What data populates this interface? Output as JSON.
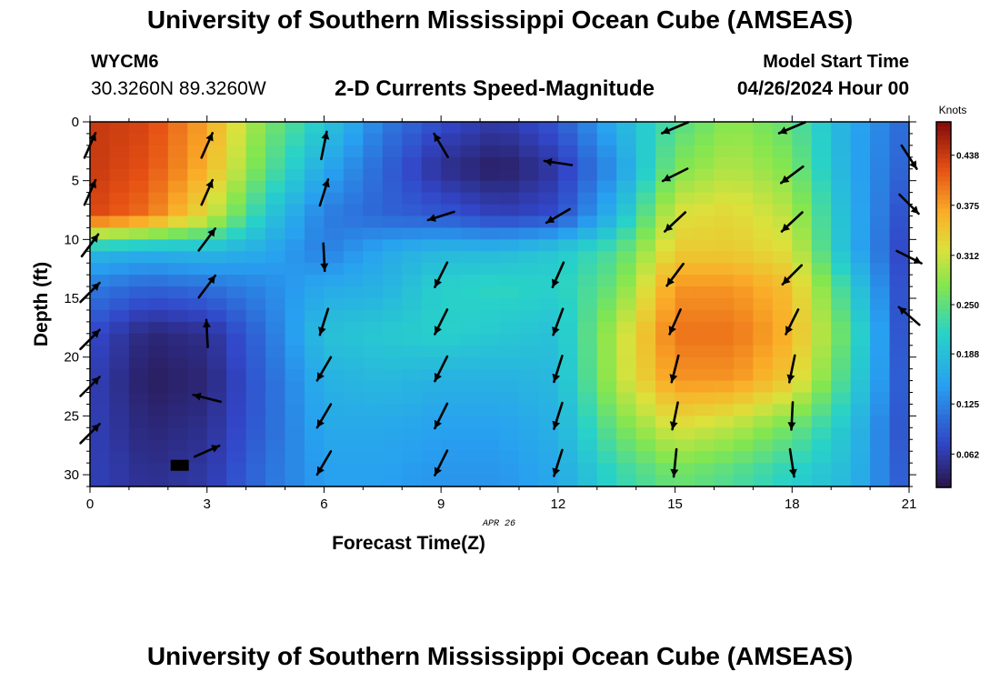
{
  "header": {
    "title": "University of Southern Mississippi Ocean Cube (AMSEAS)",
    "station": "WYCM6",
    "coords": "30.3260N  89.3260W",
    "subtitle": "2-D Currents Speed-Magnitude",
    "model_start_label": "Model Start Time",
    "model_start_value": "04/26/2024 Hour 00"
  },
  "footer": {
    "title": "University of Southern Mississippi Ocean Cube (AMSEAS)"
  },
  "chart_data": {
    "type": "heatmap",
    "xlabel": "Forecast Time(Z)",
    "ylabel": "Depth (ft)",
    "date_label": "APR 26",
    "xlim": [
      0,
      21
    ],
    "ylim": [
      0,
      31
    ],
    "x_ticks": [
      0,
      3,
      6,
      9,
      12,
      15,
      18,
      21
    ],
    "y_ticks": [
      0,
      5,
      10,
      15,
      20,
      25,
      30
    ],
    "colorbar": {
      "label": "Knots",
      "range": [
        0.02,
        0.48
      ],
      "ticks": [
        "0.062",
        "0.125",
        "0.188",
        "0.250",
        "0.312",
        "0.375",
        "0.438"
      ],
      "tick_values": [
        0.062,
        0.125,
        0.188,
        0.25,
        0.312,
        0.375,
        0.438
      ]
    },
    "speed_knots": {
      "hours": [
        0,
        1.5,
        3,
        4.5,
        6,
        7.5,
        9,
        10.5,
        12,
        13.5,
        15,
        16.5,
        18,
        19.5,
        21
      ],
      "depths_ft": [
        0,
        4,
        8,
        11,
        14,
        18,
        22,
        26,
        30
      ],
      "values": [
        [
          0.44,
          0.43,
          0.37,
          0.27,
          0.2,
          0.12,
          0.08,
          0.06,
          0.09,
          0.17,
          0.24,
          0.28,
          0.25,
          0.16,
          0.1
        ],
        [
          0.44,
          0.42,
          0.36,
          0.25,
          0.16,
          0.1,
          0.05,
          0.03,
          0.06,
          0.14,
          0.27,
          0.3,
          0.27,
          0.16,
          0.09
        ],
        [
          0.43,
          0.4,
          0.32,
          0.2,
          0.12,
          0.1,
          0.09,
          0.07,
          0.08,
          0.18,
          0.32,
          0.33,
          0.3,
          0.17,
          0.07
        ],
        [
          0.18,
          0.17,
          0.18,
          0.16,
          0.12,
          0.16,
          0.18,
          0.18,
          0.2,
          0.24,
          0.34,
          0.34,
          0.32,
          0.17,
          0.06
        ],
        [
          0.12,
          0.1,
          0.11,
          0.13,
          0.16,
          0.17,
          0.21,
          0.22,
          0.21,
          0.26,
          0.38,
          0.38,
          0.35,
          0.21,
          0.06
        ],
        [
          0.08,
          0.04,
          0.05,
          0.11,
          0.19,
          0.2,
          0.21,
          0.2,
          0.19,
          0.3,
          0.4,
          0.4,
          0.36,
          0.24,
          0.06
        ],
        [
          0.07,
          0.03,
          0.04,
          0.1,
          0.17,
          0.18,
          0.17,
          0.17,
          0.18,
          0.3,
          0.38,
          0.38,
          0.34,
          0.22,
          0.07
        ],
        [
          0.07,
          0.04,
          0.05,
          0.1,
          0.16,
          0.16,
          0.15,
          0.15,
          0.17,
          0.26,
          0.32,
          0.3,
          0.26,
          0.19,
          0.07
        ],
        [
          0.07,
          0.05,
          0.06,
          0.11,
          0.15,
          0.15,
          0.14,
          0.14,
          0.16,
          0.22,
          0.26,
          0.24,
          0.21,
          0.18,
          0.08
        ]
      ]
    },
    "current_vectors": [
      {
        "hour": 0,
        "depth": 2,
        "u": 0.4,
        "v": 0.9
      },
      {
        "hour": 0,
        "depth": 6,
        "u": 0.4,
        "v": 0.9
      },
      {
        "hour": 0,
        "depth": 10.5,
        "u": 0.6,
        "v": 0.8
      },
      {
        "hour": 0,
        "depth": 14.5,
        "u": 0.7,
        "v": 0.7
      },
      {
        "hour": 0,
        "depth": 18.5,
        "u": 0.7,
        "v": 0.7
      },
      {
        "hour": 0,
        "depth": 22.5,
        "u": 0.7,
        "v": 0.7
      },
      {
        "hour": 0,
        "depth": 26.5,
        "u": 0.7,
        "v": 0.7
      },
      {
        "hour": 3,
        "depth": 2,
        "u": 0.4,
        "v": 0.9
      },
      {
        "hour": 3,
        "depth": 6,
        "u": 0.4,
        "v": 0.9
      },
      {
        "hour": 3,
        "depth": 10,
        "u": 0.6,
        "v": 0.8
      },
      {
        "hour": 3,
        "depth": 14,
        "u": 0.6,
        "v": 0.8
      },
      {
        "hour": 3,
        "depth": 18,
        "u": -0.05,
        "v": 1.0
      },
      {
        "hour": 3,
        "depth": 23.5,
        "u": -1.0,
        "v": 0.25
      },
      {
        "hour": 3,
        "depth": 28,
        "u": 0.9,
        "v": 0.4
      },
      {
        "hour": 6,
        "depth": 2,
        "u": 0.2,
        "v": 1.0
      },
      {
        "hour": 6,
        "depth": 6,
        "u": 0.3,
        "v": 0.95
      },
      {
        "hour": 6,
        "depth": 11.5,
        "u": 0.05,
        "v": -1.0
      },
      {
        "hour": 6,
        "depth": 17,
        "u": -0.3,
        "v": -0.95
      },
      {
        "hour": 6,
        "depth": 21,
        "u": -0.5,
        "v": -0.85
      },
      {
        "hour": 6,
        "depth": 25,
        "u": -0.5,
        "v": -0.85
      },
      {
        "hour": 6,
        "depth": 29,
        "u": -0.5,
        "v": -0.85
      },
      {
        "hour": 9,
        "depth": 2,
        "u": -0.5,
        "v": 0.85
      },
      {
        "hour": 9,
        "depth": 8,
        "u": -0.95,
        "v": -0.3
      },
      {
        "hour": 9,
        "depth": 13,
        "u": -0.45,
        "v": -0.9
      },
      {
        "hour": 9,
        "depth": 17,
        "u": -0.45,
        "v": -0.9
      },
      {
        "hour": 9,
        "depth": 21,
        "u": -0.45,
        "v": -0.9
      },
      {
        "hour": 9,
        "depth": 25,
        "u": -0.45,
        "v": -0.9
      },
      {
        "hour": 9,
        "depth": 29,
        "u": -0.45,
        "v": -0.9
      },
      {
        "hour": 12,
        "depth": 3.5,
        "u": -1.0,
        "v": 0.15
      },
      {
        "hour": 12,
        "depth": 8,
        "u": -0.85,
        "v": -0.5
      },
      {
        "hour": 12,
        "depth": 13,
        "u": -0.4,
        "v": -0.9
      },
      {
        "hour": 12,
        "depth": 17,
        "u": -0.35,
        "v": -0.95
      },
      {
        "hour": 12,
        "depth": 21,
        "u": -0.3,
        "v": -0.95
      },
      {
        "hour": 12,
        "depth": 25,
        "u": -0.3,
        "v": -0.95
      },
      {
        "hour": 12,
        "depth": 29,
        "u": -0.3,
        "v": -0.95
      },
      {
        "hour": 15,
        "depth": 0.5,
        "u": -0.95,
        "v": -0.4
      },
      {
        "hour": 15,
        "depth": 4.5,
        "u": -0.9,
        "v": -0.45
      },
      {
        "hour": 15,
        "depth": 8.5,
        "u": -0.75,
        "v": -0.7
      },
      {
        "hour": 15,
        "depth": 13,
        "u": -0.6,
        "v": -0.8
      },
      {
        "hour": 15,
        "depth": 17,
        "u": -0.4,
        "v": -0.9
      },
      {
        "hour": 15,
        "depth": 21,
        "u": -0.25,
        "v": -0.97
      },
      {
        "hour": 15,
        "depth": 25,
        "u": -0.2,
        "v": -0.98
      },
      {
        "hour": 15,
        "depth": 29,
        "u": -0.1,
        "v": -1.0
      },
      {
        "hour": 18,
        "depth": 0.5,
        "u": -0.95,
        "v": -0.4
      },
      {
        "hour": 18,
        "depth": 4.5,
        "u": -0.8,
        "v": -0.6
      },
      {
        "hour": 18,
        "depth": 8.5,
        "u": -0.75,
        "v": -0.7
      },
      {
        "hour": 18,
        "depth": 13,
        "u": -0.7,
        "v": -0.7
      },
      {
        "hour": 18,
        "depth": 17,
        "u": -0.45,
        "v": -0.9
      },
      {
        "hour": 18,
        "depth": 21,
        "u": -0.2,
        "v": -0.98
      },
      {
        "hour": 18,
        "depth": 25,
        "u": -0.05,
        "v": -1.0
      },
      {
        "hour": 18,
        "depth": 29,
        "u": 0.15,
        "v": -1.0
      },
      {
        "hour": 21,
        "depth": 3,
        "u": 0.55,
        "v": -0.85
      },
      {
        "hour": 21,
        "depth": 7,
        "u": 0.7,
        "v": -0.7
      },
      {
        "hour": 21,
        "depth": 11.5,
        "u": 0.9,
        "v": -0.45
      },
      {
        "hour": 21,
        "depth": 16.5,
        "u": -0.75,
        "v": 0.65
      }
    ]
  }
}
